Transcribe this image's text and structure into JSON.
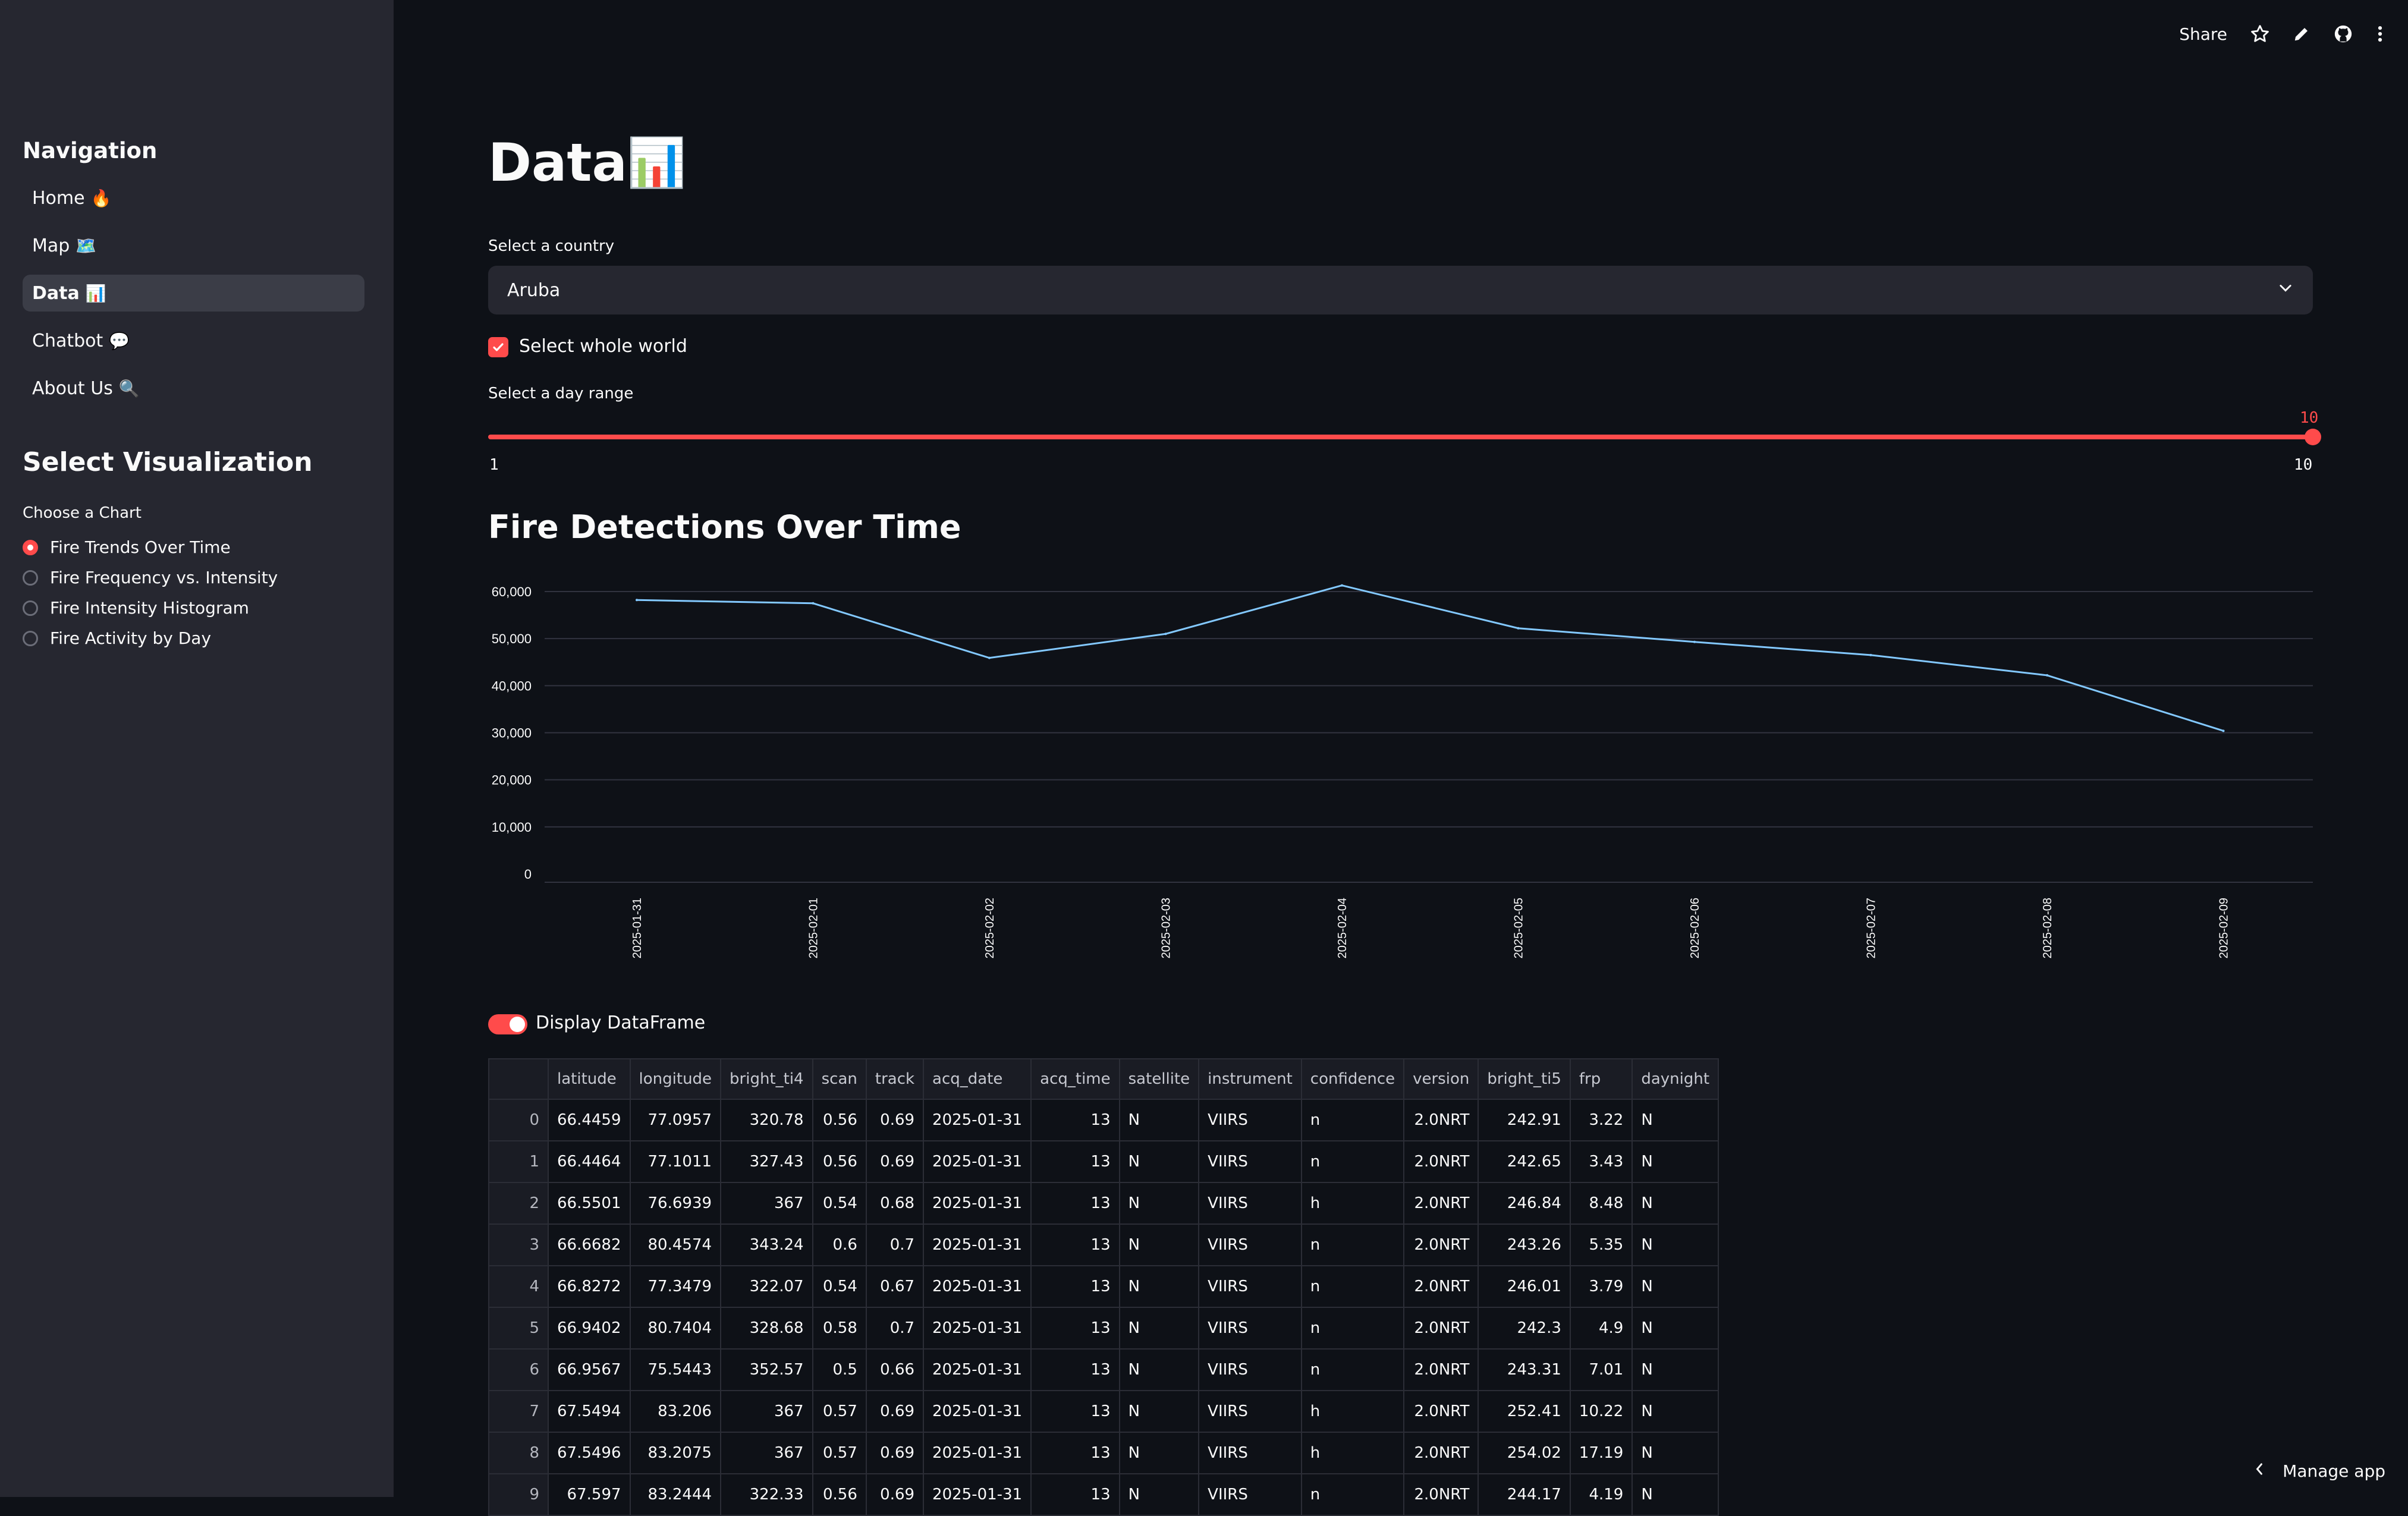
{
  "sidebar": {
    "nav_heading": "Navigation",
    "nav_items": [
      {
        "label": "Home",
        "emoji": "🔥"
      },
      {
        "label": "Map",
        "emoji": "🗺️"
      },
      {
        "label": "Data",
        "emoji": "📊"
      },
      {
        "label": "Chatbot",
        "emoji": "💬"
      },
      {
        "label": "About Us",
        "emoji": "🔍"
      }
    ],
    "viz_heading": "Select Visualization",
    "chart_label": "Choose a Chart",
    "chart_options": [
      "Fire Trends Over Time",
      "Fire Frequency vs. Intensity",
      "Fire Intensity Histogram",
      "Fire Activity by Day"
    ],
    "selected_chart": "Fire Trends Over Time"
  },
  "topbar": {
    "share_label": "Share",
    "icons": [
      "star-icon",
      "pencil-icon",
      "github-icon",
      "more-vertical-icon"
    ]
  },
  "main": {
    "title": "Data",
    "title_emoji": "📊",
    "country_label": "Select a country",
    "country_value": "Aruba",
    "whole_world_label": "Select whole world",
    "whole_world_checked": true,
    "day_range_label": "Select a day range",
    "slider_min": "1",
    "slider_max": "10",
    "slider_value": "10",
    "chart_heading": "Fire Detections Over Time",
    "display_df_label": "Display DataFrame",
    "display_df_on": true
  },
  "chart_data": {
    "type": "line",
    "x": [
      "2025-01-31",
      "2025-02-01",
      "2025-02-02",
      "2025-02-03",
      "2025-02-04",
      "2025-02-05",
      "2025-02-06",
      "2025-02-07",
      "2025-02-08",
      "2025-02-09"
    ],
    "values": [
      58200,
      57500,
      45900,
      51000,
      61300,
      52200,
      49300,
      46500,
      42200,
      30400
    ],
    "ylim": [
      0,
      60000
    ],
    "yticks": [
      "0",
      "10,000",
      "20,000",
      "30,000",
      "40,000",
      "50,000",
      "60,000"
    ],
    "line_color": "#83c9ff",
    "grid": true
  },
  "table": {
    "columns": [
      "",
      "latitude",
      "longitude",
      "bright_ti4",
      "scan",
      "track",
      "acq_date",
      "acq_time",
      "satellite",
      "instrument",
      "confidence",
      "version",
      "bright_ti5",
      "frp",
      "daynight"
    ],
    "rows": [
      [
        "0",
        "66.4459",
        "77.0957",
        "320.78",
        "0.56",
        "0.69",
        "2025-01-31",
        "13",
        "N",
        "VIIRS",
        "n",
        "2.0NRT",
        "242.91",
        "3.22",
        "N"
      ],
      [
        "1",
        "66.4464",
        "77.1011",
        "327.43",
        "0.56",
        "0.69",
        "2025-01-31",
        "13",
        "N",
        "VIIRS",
        "n",
        "2.0NRT",
        "242.65",
        "3.43",
        "N"
      ],
      [
        "2",
        "66.5501",
        "76.6939",
        "367",
        "0.54",
        "0.68",
        "2025-01-31",
        "13",
        "N",
        "VIIRS",
        "h",
        "2.0NRT",
        "246.84",
        "8.48",
        "N"
      ],
      [
        "3",
        "66.6682",
        "80.4574",
        "343.24",
        "0.6",
        "0.7",
        "2025-01-31",
        "13",
        "N",
        "VIIRS",
        "n",
        "2.0NRT",
        "243.26",
        "5.35",
        "N"
      ],
      [
        "4",
        "66.8272",
        "77.3479",
        "322.07",
        "0.54",
        "0.67",
        "2025-01-31",
        "13",
        "N",
        "VIIRS",
        "n",
        "2.0NRT",
        "246.01",
        "3.79",
        "N"
      ],
      [
        "5",
        "66.9402",
        "80.7404",
        "328.68",
        "0.58",
        "0.7",
        "2025-01-31",
        "13",
        "N",
        "VIIRS",
        "n",
        "2.0NRT",
        "242.3",
        "4.9",
        "N"
      ],
      [
        "6",
        "66.9567",
        "75.5443",
        "352.57",
        "0.5",
        "0.66",
        "2025-01-31",
        "13",
        "N",
        "VIIRS",
        "n",
        "2.0NRT",
        "243.31",
        "7.01",
        "N"
      ],
      [
        "7",
        "67.5494",
        "83.206",
        "367",
        "0.57",
        "0.69",
        "2025-01-31",
        "13",
        "N",
        "VIIRS",
        "h",
        "2.0NRT",
        "252.41",
        "10.22",
        "N"
      ],
      [
        "8",
        "67.5496",
        "83.2075",
        "367",
        "0.57",
        "0.69",
        "2025-01-31",
        "13",
        "N",
        "VIIRS",
        "h",
        "2.0NRT",
        "254.02",
        "17.19",
        "N"
      ],
      [
        "9",
        "67.597",
        "83.2444",
        "322.33",
        "0.56",
        "0.69",
        "2025-01-31",
        "13",
        "N",
        "VIIRS",
        "n",
        "2.0NRT",
        "244.17",
        "4.19",
        "N"
      ]
    ],
    "text_columns": [
      6,
      8,
      9,
      10,
      14
    ]
  },
  "footer": {
    "manage_label": "Manage app"
  }
}
